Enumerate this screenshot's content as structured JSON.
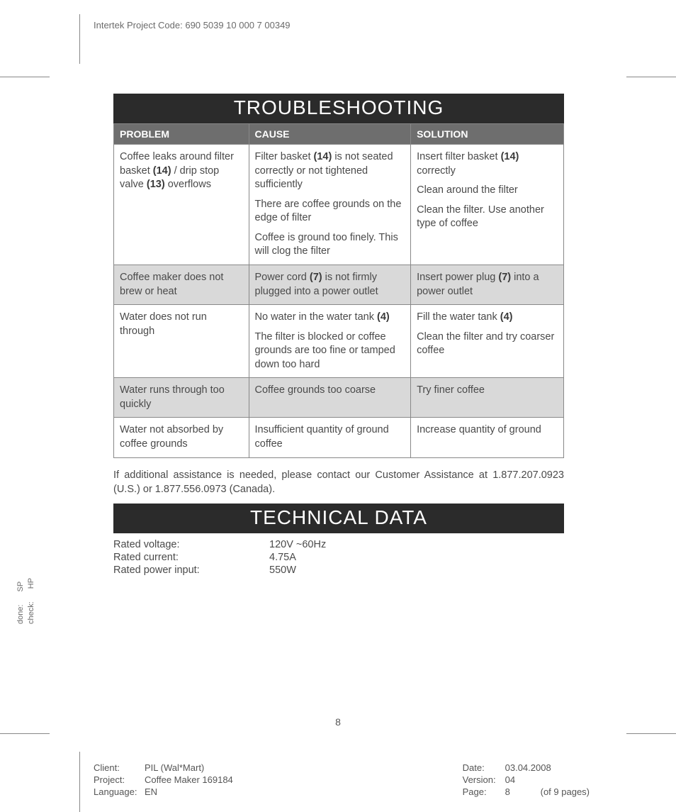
{
  "header": {
    "project_code": "Intertek Project Code: 690 5039 10 000 7 00349"
  },
  "sections": {
    "troubleshooting_title": "TROUBLESHOOTING",
    "technical_title": "TECHNICAL DATA"
  },
  "table": {
    "headers": {
      "problem": "PROBLEM",
      "cause": "CAUSE",
      "solution": "SOLUTION"
    },
    "rows": [
      {
        "problem": "Coffee leaks around filter basket <b>(14)</b> / drip stop valve <b>(13)</b> overflows",
        "cause": "Filter basket <b>(14)</b> is not seated correctly or not tightened sufficiently|There are coffee grounds on the edge of filter|Coffee is ground too finely. This will clog the filter",
        "solution": "Insert filter basket <b>(14)</b> correctly|Clean around the filter|Clean the filter. Use another type of coffee"
      },
      {
        "alt": true,
        "problem": "Coffee maker does not brew or heat",
        "cause": "Power cord <b>(7)</b> is not firmly plugged into a power outlet",
        "solution": "Insert power plug <b>(7)</b> into a power outlet"
      },
      {
        "problem": "Water does not run through",
        "cause": "No water in the water tank <b>(4)</b>|The filter is blocked or coffee grounds are too fine or tamped down too hard",
        "solution": "Fill the water tank <b>(4)</b>|Clean the filter and try coarser coffee"
      },
      {
        "alt": true,
        "problem": "Water runs through too quickly",
        "cause": "Coffee grounds too coarse",
        "solution": "Try finer coffee"
      },
      {
        "problem": "Water not absorbed by coffee grounds",
        "cause": "Insufficient quantity of ground coffee",
        "solution": "Increase quantity of ground"
      }
    ]
  },
  "assistance": "If additional assistance is needed, please contact our Customer Assistance at 1.877.207.0923 (U.S.) or 1.877.556.0973 (Canada).",
  "tech": {
    "voltage_label": "Rated voltage:",
    "voltage_value": "120V ~60Hz",
    "current_label": "Rated current:",
    "current_value": "4.75A",
    "power_label": "Rated power input:",
    "power_value": "550W"
  },
  "page_number": "8",
  "side": {
    "done_label": "done:",
    "done_value": "SP",
    "check_label": "check:",
    "check_value": "HP"
  },
  "footer": {
    "client_label": "Client:",
    "client_value": "PIL (Wal*Mart)",
    "project_label": "Project:",
    "project_value": "Coffee Maker 169184",
    "language_label": "Language:",
    "language_value": "EN",
    "date_label": "Date:",
    "date_value": "03.04.2008",
    "version_label": "Version:",
    "version_value": "04",
    "page_label": "Page:",
    "page_value": "8",
    "page_total": "(of 9 pages)"
  }
}
